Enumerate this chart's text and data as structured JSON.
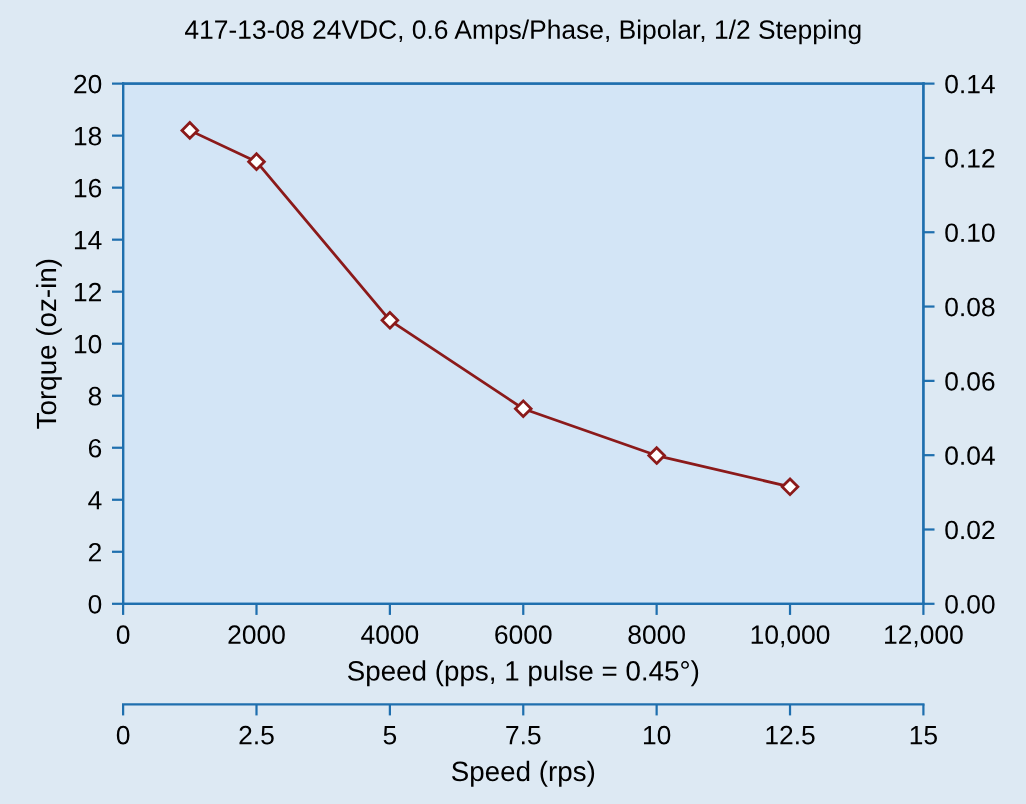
{
  "chart_data": {
    "type": "line",
    "title": "417-13-08 24VDC, 0.6 Amps/Phase, Bipolar, 1/2 Stepping",
    "xlabel": "Speed (pps, 1 pulse = 0.45°)",
    "ylabel": "Torque (oz-in)",
    "x2label": "Speed (rps)",
    "x": [
      1000,
      2000,
      4000,
      6000,
      8000,
      10000
    ],
    "series": [
      {
        "color": "#8b1a1a",
        "values": [
          18.2,
          17.0,
          10.9,
          7.5,
          5.7,
          4.5
        ]
      }
    ],
    "marker": "diamond",
    "line_style": "solid",
    "grid": false,
    "legend": false,
    "xlim": [
      0,
      12000
    ],
    "xticks": [
      0,
      2000,
      4000,
      6000,
      8000,
      {
        "value": 10000,
        "label": "10,000"
      },
      {
        "value": 12000,
        "label": "12,000"
      }
    ],
    "ylim": [
      0,
      20
    ],
    "yticks": [
      0,
      2,
      4,
      6,
      8,
      10,
      12,
      14,
      16,
      18,
      20
    ],
    "y2lim": [
      0,
      0.14
    ],
    "y2ticks": [
      {
        "value": 0,
        "label": "0.00"
      },
      {
        "value": 0.02,
        "label": "0.02"
      },
      {
        "value": 0.04,
        "label": "0.04"
      },
      {
        "value": 0.06,
        "label": "0.06"
      },
      {
        "value": 0.08,
        "label": "0.08"
      },
      {
        "value": 0.1,
        "label": "0.10"
      },
      {
        "value": 0.12,
        "label": "0.12"
      },
      {
        "value": 0.14,
        "label": "0.14"
      }
    ],
    "x2lim": [
      0,
      15
    ],
    "x2ticks": [
      0,
      2.5,
      5,
      7.5,
      10,
      12.5,
      15
    ]
  }
}
